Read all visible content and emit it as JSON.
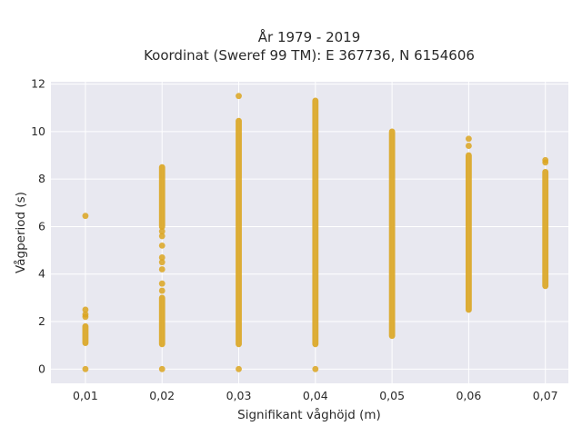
{
  "chart_data": {
    "type": "scatter",
    "title_lines": [
      "År 1979 - 2019",
      "Koordinat (Sweref 99 TM): E 367736, N 6154606"
    ],
    "xlabel": "Signifikant våghöjd (m)",
    "ylabel": "Vågperiod (s)",
    "x_ticks": [
      0.01,
      0.02,
      0.03,
      0.04,
      0.05,
      0.06,
      0.07
    ],
    "x_tick_labels": [
      "0,01",
      "0,02",
      "0,03",
      "0,04",
      "0,05",
      "0,06",
      "0,07"
    ],
    "y_ticks": [
      0,
      2,
      4,
      6,
      8,
      10,
      12
    ],
    "y_tick_labels": [
      "0",
      "2",
      "4",
      "6",
      "8",
      "10",
      "12"
    ],
    "xlim": [
      0.0055,
      0.073
    ],
    "ylim": [
      -0.6,
      12.1
    ],
    "grid": true,
    "background": "#e8e8f0",
    "grid_color": "#ffffff",
    "marker_color": "#daa520",
    "columns": [
      {
        "x": 0.01,
        "segments": [
          [
            1.1,
            1.8
          ]
        ],
        "points": [
          0.0,
          2.2,
          2.3,
          2.5,
          6.45
        ]
      },
      {
        "x": 0.02,
        "segments": [
          [
            1.05,
            3.0
          ],
          [
            6.0,
            8.5
          ]
        ],
        "points": [
          0.0,
          3.3,
          3.6,
          4.2,
          4.5,
          4.7,
          5.2,
          5.6,
          5.8
        ]
      },
      {
        "x": 0.03,
        "segments": [
          [
            1.05,
            10.45
          ]
        ],
        "points": [
          0.0,
          11.5
        ]
      },
      {
        "x": 0.04,
        "segments": [
          [
            1.05,
            11.3
          ]
        ],
        "points": [
          0.0
        ]
      },
      {
        "x": 0.05,
        "segments": [
          [
            1.4,
            10.0
          ]
        ],
        "points": []
      },
      {
        "x": 0.06,
        "segments": [
          [
            2.5,
            9.0
          ]
        ],
        "points": [
          9.4,
          9.7
        ]
      },
      {
        "x": 0.07,
        "segments": [
          [
            3.5,
            8.3
          ]
        ],
        "points": [
          8.7,
          8.8
        ]
      }
    ]
  }
}
